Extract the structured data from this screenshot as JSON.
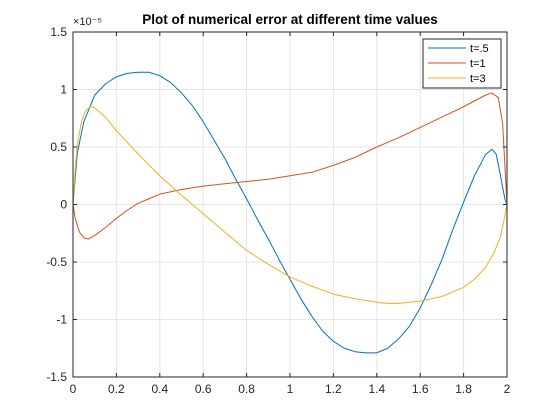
{
  "chart_data": {
    "type": "line",
    "title": "Plot of numerical error at different time values",
    "xlabel": "",
    "ylabel": "",
    "xlim": [
      0,
      2
    ],
    "ylim": [
      -1.5,
      1.5
    ],
    "y_multiplier_label": "×10⁻⁵",
    "x_ticks": [
      0,
      0.2,
      0.4,
      0.6,
      0.8,
      1,
      1.2,
      1.4,
      1.6,
      1.8,
      2
    ],
    "x_tick_labels": [
      "0",
      "0.2",
      "0.4",
      "0.6",
      "0.8",
      "1",
      "1.2",
      "1.4",
      "1.6",
      "1.8",
      "2"
    ],
    "y_ticks": [
      -1.5,
      -1,
      -0.5,
      0,
      0.5,
      1,
      1.5
    ],
    "y_tick_labels": [
      "-1.5",
      "-1",
      "-0.5",
      "0",
      "0.5",
      "1",
      "1.5"
    ],
    "grid": true,
    "legend_position": "top-right",
    "series": [
      {
        "name": "t=.5",
        "color": "#0072BD",
        "x": [
          0,
          0.02,
          0.05,
          0.1,
          0.15,
          0.2,
          0.25,
          0.3,
          0.35,
          0.4,
          0.45,
          0.5,
          0.55,
          0.6,
          0.65,
          0.7,
          0.75,
          0.8,
          0.85,
          0.9,
          0.95,
          1.0,
          1.05,
          1.1,
          1.15,
          1.2,
          1.25,
          1.3,
          1.35,
          1.4,
          1.45,
          1.5,
          1.55,
          1.6,
          1.65,
          1.7,
          1.75,
          1.8,
          1.85,
          1.9,
          1.93,
          1.95,
          1.97,
          1.99,
          2.0
        ],
        "y": [
          0,
          0.45,
          0.72,
          0.95,
          1.05,
          1.11,
          1.14,
          1.15,
          1.15,
          1.12,
          1.06,
          0.97,
          0.86,
          0.72,
          0.56,
          0.4,
          0.22,
          0.05,
          -0.13,
          -0.3,
          -0.48,
          -0.65,
          -0.82,
          -0.97,
          -1.1,
          -1.19,
          -1.25,
          -1.28,
          -1.29,
          -1.29,
          -1.25,
          -1.17,
          -1.06,
          -0.9,
          -0.7,
          -0.48,
          -0.22,
          0.02,
          0.25,
          0.43,
          0.48,
          0.44,
          0.25,
          0.05,
          0
        ]
      },
      {
        "name": "t=1",
        "color": "#D95319",
        "x": [
          0,
          0.01,
          0.03,
          0.05,
          0.07,
          0.1,
          0.15,
          0.2,
          0.25,
          0.3,
          0.35,
          0.4,
          0.5,
          0.6,
          0.7,
          0.8,
          0.9,
          1.0,
          1.1,
          1.2,
          1.3,
          1.4,
          1.5,
          1.6,
          1.7,
          1.8,
          1.85,
          1.9,
          1.93,
          1.96,
          1.98,
          1.99,
          2.0
        ],
        "y": [
          0,
          -0.12,
          -0.24,
          -0.29,
          -0.3,
          -0.27,
          -0.2,
          -0.12,
          -0.05,
          0.01,
          0.05,
          0.09,
          0.13,
          0.16,
          0.18,
          0.2,
          0.22,
          0.25,
          0.28,
          0.34,
          0.41,
          0.5,
          0.58,
          0.67,
          0.76,
          0.85,
          0.9,
          0.95,
          0.97,
          0.93,
          0.7,
          0.35,
          0
        ]
      },
      {
        "name": "t=3",
        "color": "#EDB120",
        "x": [
          0,
          0.01,
          0.02,
          0.04,
          0.06,
          0.08,
          0.1,
          0.15,
          0.2,
          0.3,
          0.4,
          0.5,
          0.6,
          0.7,
          0.8,
          0.9,
          1.0,
          1.1,
          1.2,
          1.3,
          1.4,
          1.45,
          1.5,
          1.6,
          1.7,
          1.8,
          1.85,
          1.9,
          1.94,
          1.97,
          1.99,
          2.0
        ],
        "y": [
          0,
          0.3,
          0.52,
          0.73,
          0.82,
          0.85,
          0.84,
          0.76,
          0.64,
          0.44,
          0.25,
          0.08,
          -0.08,
          -0.24,
          -0.4,
          -0.52,
          -0.63,
          -0.71,
          -0.78,
          -0.82,
          -0.85,
          -0.86,
          -0.86,
          -0.84,
          -0.8,
          -0.72,
          -0.65,
          -0.55,
          -0.42,
          -0.28,
          -0.1,
          0
        ]
      }
    ]
  }
}
